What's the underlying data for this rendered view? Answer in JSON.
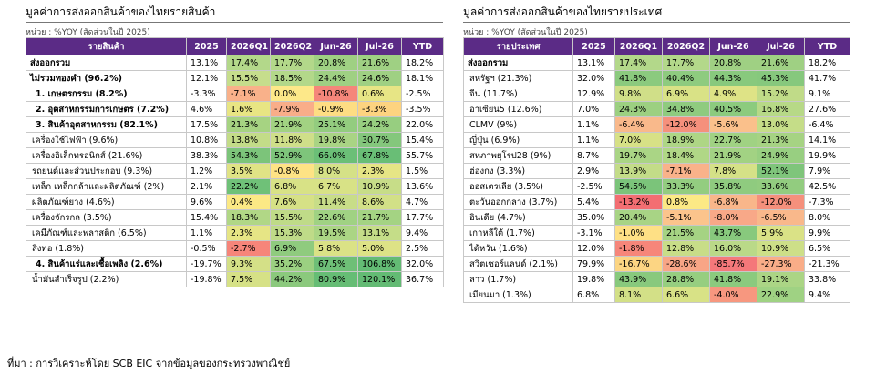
{
  "left": {
    "title": "มูลค่าการส่งออกสินค้าของไทยรายสินค้า",
    "unit": "หน่วย : %YOY (สัดส่วนในปี 2025)",
    "headers": [
      "รายสินค้า",
      "2025",
      "2026Q1",
      "2026Q2",
      "Jun-26",
      "Jul-26",
      "YTD"
    ],
    "rows": [
      {
        "label": "ส่งออกรวม",
        "style": "bold",
        "values": [
          "13.1%",
          "17.4%",
          "17.7%",
          "20.8%",
          "21.6%",
          "18.2%"
        ],
        "colors": [
          "#ffffff",
          "#b3d88a",
          "#b3d88a",
          "#9fd083",
          "#9fd083",
          "#ffffff"
        ]
      },
      {
        "label": "ไม่รวมทองคำ (96.2%)",
        "style": "bold",
        "values": [
          "12.1%",
          "15.5%",
          "18.5%",
          "24.4%",
          "24.6%",
          "18.1%"
        ],
        "colors": [
          "#ffffff",
          "#c6dd8c",
          "#b3d88a",
          "#9fd083",
          "#9fd083",
          "#ffffff"
        ]
      },
      {
        "label": "1. เกษตรกรรม (8.2%)",
        "style": "boldind",
        "values": [
          "-3.3%",
          "-7.1%",
          "0.0%",
          "-10.8%",
          "0.6%",
          "-2.5%"
        ],
        "colors": [
          "#ffffff",
          "#f9b18a",
          "#fde889",
          "#f5867a",
          "#e7e585",
          "#ffffff"
        ]
      },
      {
        "label": "2. อุตสาหกรรมการเกษตร (7.2%)",
        "style": "boldind",
        "values": [
          "4.6%",
          "1.6%",
          "-7.9%",
          "-0.9%",
          "-3.3%",
          "-3.5%"
        ],
        "colors": [
          "#ffffff",
          "#e8e583",
          "#f9ad89",
          "#fedd83",
          "#fdd380",
          "#ffffff"
        ]
      },
      {
        "label": "3. สินค้าอุตสาหกรรม (82.1%)",
        "style": "boldind",
        "values": [
          "17.5%",
          "21.3%",
          "21.9%",
          "25.1%",
          "24.2%",
          "22.0%"
        ],
        "colors": [
          "#ffffff",
          "#a6d382",
          "#a2d282",
          "#93cc7f",
          "#97ce80",
          "#ffffff"
        ]
      },
      {
        "label": "เครื่องใช้ไฟฟ้า (9.6%)",
        "style": "plain",
        "values": [
          "10.8%",
          "13.8%",
          "11.8%",
          "19.8%",
          "30.7%",
          "15.4%"
        ],
        "colors": [
          "#ffffff",
          "#c3dc88",
          "#cfdf89",
          "#a9d484",
          "#84c77c",
          "#ffffff"
        ]
      },
      {
        "label": "เครื่องอิเล็กทรอนิกส์ (21.6%)",
        "style": "plain",
        "values": [
          "38.3%",
          "54.3%",
          "52.9%",
          "66.0%",
          "67.8%",
          "55.7%"
        ],
        "colors": [
          "#ffffff",
          "#7cc47a",
          "#7ec57b",
          "#6bbf77",
          "#69be76",
          "#ffffff"
        ]
      },
      {
        "label": "รถยนต์และส่วนประกอบ (9.3%)",
        "style": "plain",
        "values": [
          "1.2%",
          "3.5%",
          "-0.8%",
          "8.0%",
          "2.3%",
          "1.5%"
        ],
        "colors": [
          "#ffffff",
          "#e0e385",
          "#fee385",
          "#d5e187",
          "#e6e585",
          "#ffffff"
        ]
      },
      {
        "label": "เหล็ก เหล็กกล้าและผลิตภัณฑ์ (2%)",
        "style": "plain",
        "values": [
          "2.1%",
          "22.2%",
          "6.8%",
          "6.7%",
          "10.9%",
          "13.6%"
        ],
        "colors": [
          "#ffffff",
          "#6fc178",
          "#d8e286",
          "#d8e286",
          "#c7dd88",
          "#ffffff"
        ]
      },
      {
        "label": "ผลิตภัณฑ์ยาง (4.6%)",
        "style": "plain",
        "values": [
          "9.6%",
          "0.4%",
          "7.6%",
          "11.4%",
          "8.6%",
          "4.7%"
        ],
        "colors": [
          "#ffffff",
          "#fce985",
          "#d6e186",
          "#c8dd88",
          "#d2e087",
          "#ffffff"
        ]
      },
      {
        "label": "เครื่องจักรกล (3.5%)",
        "style": "plain",
        "values": [
          "15.4%",
          "18.3%",
          "15.5%",
          "22.6%",
          "21.7%",
          "17.7%"
        ],
        "colors": [
          "#ffffff",
          "#b1d786",
          "#bfdb88",
          "#a0d283",
          "#a4d383",
          "#ffffff"
        ]
      },
      {
        "label": "เคมีภัณฑ์และพลาสติก (6.5%)",
        "style": "plain",
        "values": [
          "1.1%",
          "2.3%",
          "15.3%",
          "19.5%",
          "13.1%",
          "9.4%"
        ],
        "colors": [
          "#ffffff",
          "#e6e585",
          "#bfdb88",
          "#abd584",
          "#c5dd88",
          "#ffffff"
        ]
      },
      {
        "label": "สิ่งทอ (1.8%)",
        "style": "plain",
        "values": [
          "-0.5%",
          "-2.7%",
          "6.9%",
          "5.8%",
          "5.0%",
          "2.5%"
        ],
        "colors": [
          "#ffffff",
          "#f6857a",
          "#8fcb7e",
          "#dbe286",
          "#dde286",
          "#ffffff"
        ]
      },
      {
        "label": "4. สินค้าแร่และเชื้อเพลิง (2.6%)",
        "style": "boldind",
        "values": [
          "-19.7%",
          "9.3%",
          "35.2%",
          "67.5%",
          "106.8%",
          "32.0%"
        ],
        "colors": [
          "#ffffff",
          "#d4e087",
          "#9bd081",
          "#6ebf77",
          "#63bb74",
          "#ffffff"
        ]
      },
      {
        "label": "น้ำมันสำเร็จรูป (2.2%)",
        "style": "plain",
        "values": [
          "-19.8%",
          "7.5%",
          "44.2%",
          "80.9%",
          "120.1%",
          "36.7%"
        ],
        "colors": [
          "#ffffff",
          "#d6e186",
          "#8bc97d",
          "#66bd75",
          "#63bb74",
          "#ffffff"
        ]
      }
    ]
  },
  "right": {
    "title": "มูลค่าการส่งออกสินค้าของไทยรายประเทศ",
    "unit": "หน่วย : %YOY (สัดส่วนในปี 2025)",
    "headers": [
      "รายประเทศ",
      "2025",
      "2026Q1",
      "2026Q2",
      "Jun-26",
      "Jul-26",
      "YTD"
    ],
    "rows": [
      {
        "label": "ส่งออกรวม",
        "style": "bold",
        "values": [
          "13.1%",
          "17.4%",
          "17.7%",
          "20.8%",
          "21.6%",
          "18.2%"
        ],
        "colors": [
          "#ffffff",
          "#b3d88a",
          "#b3d88a",
          "#9fd083",
          "#9fd083",
          "#ffffff"
        ]
      },
      {
        "label": "สหรัฐฯ (21.3%)",
        "style": "plain",
        "values": [
          "32.0%",
          "41.8%",
          "40.4%",
          "44.3%",
          "45.3%",
          "41.7%"
        ],
        "colors": [
          "#ffffff",
          "#8bca7e",
          "#8ecb7f",
          "#88c97d",
          "#86c87d",
          "#ffffff"
        ]
      },
      {
        "label": "จีน (11.7%)",
        "style": "plain",
        "values": [
          "12.9%",
          "9.8%",
          "6.9%",
          "4.9%",
          "15.2%",
          "9.1%"
        ],
        "colors": [
          "#ffffff",
          "#d0df88",
          "#d9e286",
          "#dee386",
          "#c0db88",
          "#ffffff"
        ]
      },
      {
        "label": "อาเซียน5 (12.6%)",
        "style": "plain",
        "values": [
          "7.0%",
          "24.3%",
          "34.8%",
          "40.5%",
          "16.8%",
          "27.6%"
        ],
        "colors": [
          "#ffffff",
          "#9cd081",
          "#8fcb7f",
          "#8ccb7e",
          "#b7d987",
          "#ffffff"
        ]
      },
      {
        "label": "CLMV (9%)",
        "style": "plain",
        "values": [
          "1.1%",
          "-6.4%",
          "-12.0%",
          "-5.6%",
          "13.0%",
          "-6.4%"
        ],
        "colors": [
          "#ffffff",
          "#f9b98b",
          "#f5907c",
          "#fac08b",
          "#c5dd88",
          "#ffffff"
        ]
      },
      {
        "label": "ญี่ปุ่น (6.9%)",
        "style": "plain",
        "values": [
          "1.1%",
          "7.0%",
          "18.9%",
          "22.7%",
          "21.3%",
          "14.1%"
        ],
        "colors": [
          "#ffffff",
          "#d7e186",
          "#aed685",
          "#a0d283",
          "#a6d383",
          "#ffffff"
        ]
      },
      {
        "label": "สหภาพยุโรป28 (9%)",
        "style": "plain",
        "values": [
          "8.7%",
          "19.7%",
          "18.4%",
          "21.9%",
          "24.9%",
          "19.9%"
        ],
        "colors": [
          "#ffffff",
          "#aad585",
          "#b0d786",
          "#a2d283",
          "#98cf81",
          "#ffffff"
        ]
      },
      {
        "label": "ฮ่องกง (3.3%)",
        "style": "plain",
        "values": [
          "2.9%",
          "13.9%",
          "-7.1%",
          "7.8%",
          "52.1%",
          "7.9%"
        ],
        "colors": [
          "#ffffff",
          "#c3dc88",
          "#f9b28a",
          "#d5e187",
          "#7fc57b",
          "#ffffff"
        ]
      },
      {
        "label": "ออสเตรเลีย (3.5%)",
        "style": "plain",
        "values": [
          "-2.5%",
          "54.5%",
          "33.3%",
          "35.8%",
          "33.6%",
          "42.5%"
        ],
        "colors": [
          "#ffffff",
          "#7bc47a",
          "#93cd80",
          "#8fcb7f",
          "#92cc7f",
          "#ffffff"
        ]
      },
      {
        "label": "ตะวันออกกลาง (3.7%)",
        "style": "plain",
        "values": [
          "5.4%",
          "-13.2%",
          "0.8%",
          "-6.8%",
          "-12.0%",
          "-7.3%"
        ],
        "colors": [
          "#ffffff",
          "#f36e72",
          "#fce985",
          "#f9b68a",
          "#f5907c",
          "#ffffff"
        ]
      },
      {
        "label": "อินเดีย (4.7%)",
        "style": "plain",
        "values": [
          "35.0%",
          "20.4%",
          "-5.1%",
          "-8.0%",
          "-6.5%",
          "8.0%"
        ],
        "colors": [
          "#ffffff",
          "#a8d485",
          "#fbc48c",
          "#f8a888",
          "#f9b88b",
          "#ffffff"
        ]
      },
      {
        "label": "เกาหลีใต้ (1.7%)",
        "style": "plain",
        "values": [
          "-3.1%",
          "-1.0%",
          "21.5%",
          "43.7%",
          "5.9%",
          "9.9%"
        ],
        "colors": [
          "#ffffff",
          "#fee085",
          "#a5d383",
          "#88c97d",
          "#dae286",
          "#ffffff"
        ]
      },
      {
        "label": "ไต้หวัน (1.6%)",
        "style": "plain",
        "values": [
          "12.0%",
          "-1.8%",
          "12.8%",
          "16.0%",
          "10.9%",
          "6.5%"
        ],
        "colors": [
          "#ffffff",
          "#f6867a",
          "#c8dd88",
          "#bad988",
          "#cddf88",
          "#ffffff"
        ]
      },
      {
        "label": "สวิตเซอร์แลนด์ (2.1%)",
        "style": "plain",
        "values": [
          "79.9%",
          "-16.7%",
          "-28.6%",
          "-85.7%",
          "-27.3%",
          "-21.3%"
        ],
        "colors": [
          "#ffffff",
          "#fcd583",
          "#f8a586",
          "#f4787a",
          "#f9ad88",
          "#ffffff"
        ]
      },
      {
        "label": "ลาว (1.7%)",
        "style": "plain",
        "values": [
          "19.8%",
          "43.9%",
          "28.8%",
          "41.8%",
          "19.1%",
          "33.8%"
        ],
        "colors": [
          "#ffffff",
          "#88c97d",
          "#96ce80",
          "#8bca7e",
          "#abd585",
          "#ffffff"
        ]
      },
      {
        "label": "เมียนมา (1.3%)",
        "style": "plain",
        "values": [
          "6.8%",
          "8.1%",
          "6.6%",
          "-4.0%",
          "22.9%",
          "9.4%"
        ],
        "colors": [
          "#ffffff",
          "#d3e087",
          "#d8e286",
          "#f7977f",
          "#9fd283",
          "#ffffff"
        ]
      }
    ]
  },
  "footer": "ที่มา : การวิเคราะห์โดย SCB EIC จากข้อมูลของกระทรวงพาณิชย์"
}
